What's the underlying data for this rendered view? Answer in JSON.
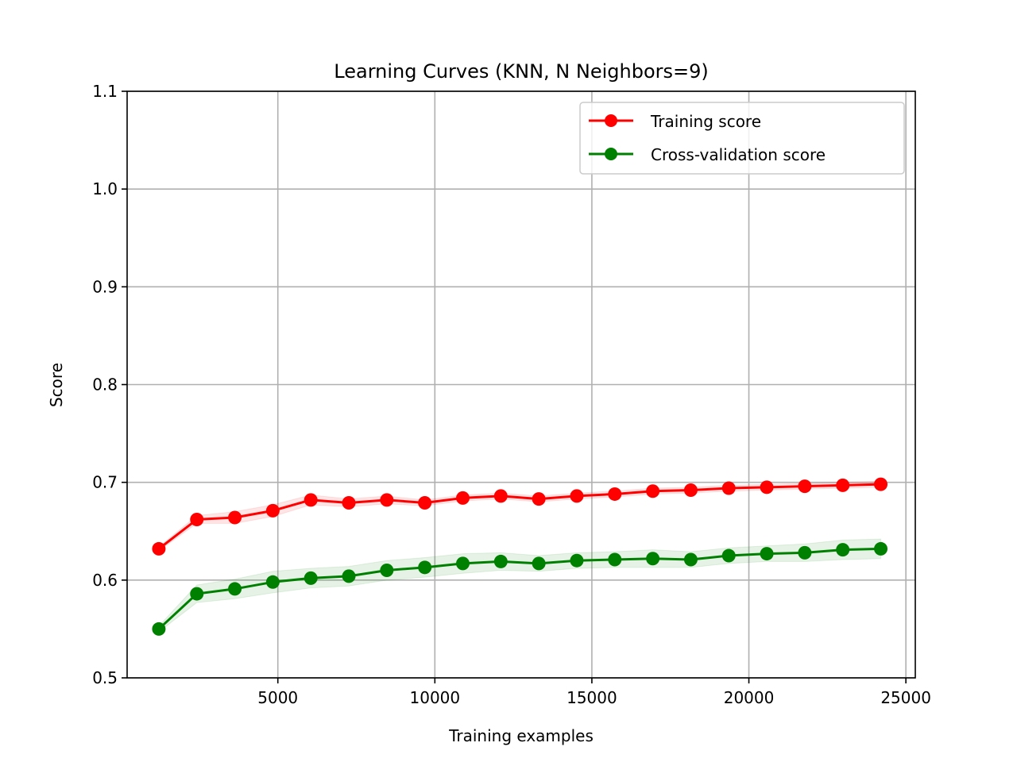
{
  "chart_data": {
    "type": "line",
    "title": "Learning Curves (KNN, N Neighbors=9)",
    "xlabel": "Training examples",
    "ylabel": "Score",
    "xlim": [
      200,
      25300
    ],
    "ylim": [
      0.5,
      1.1
    ],
    "xticks": [
      5000,
      10000,
      15000,
      20000,
      25000
    ],
    "yticks": [
      0.5,
      0.6,
      0.7,
      0.8,
      0.9,
      1.0,
      1.1
    ],
    "xtick_labels": [
      "5000",
      "10000",
      "15000",
      "20000",
      "25000"
    ],
    "ytick_labels": [
      "0.5",
      "0.6",
      "0.7",
      "0.8",
      "0.9",
      "1.0",
      "1.1"
    ],
    "grid": true,
    "legend_position": "top-right",
    "x": [
      1210,
      2420,
      3630,
      4840,
      6050,
      7260,
      8470,
      9680,
      10890,
      12100,
      13310,
      14520,
      15730,
      16940,
      18150,
      19360,
      20570,
      21780,
      22990,
      24200
    ],
    "series": [
      {
        "name": "Training score",
        "color": "#ff0000",
        "values": [
          0.632,
          0.662,
          0.664,
          0.671,
          0.682,
          0.679,
          0.682,
          0.679,
          0.684,
          0.686,
          0.683,
          0.686,
          0.688,
          0.691,
          0.692,
          0.694,
          0.695,
          0.696,
          0.697,
          0.698
        ],
        "band": [
          0.002,
          0.004,
          0.006,
          0.006,
          0.005,
          0.004,
          0.004,
          0.003,
          0.003,
          0.003,
          0.003,
          0.003,
          0.003,
          0.003,
          0.003,
          0.003,
          0.003,
          0.003,
          0.003,
          0.003
        ]
      },
      {
        "name": "Cross-validation score",
        "color": "#008000",
        "values": [
          0.55,
          0.586,
          0.591,
          0.598,
          0.602,
          0.604,
          0.61,
          0.613,
          0.617,
          0.619,
          0.617,
          0.62,
          0.621,
          0.622,
          0.621,
          0.625,
          0.627,
          0.628,
          0.631,
          0.632
        ],
        "band": [
          0.003,
          0.009,
          0.01,
          0.011,
          0.01,
          0.01,
          0.01,
          0.01,
          0.01,
          0.009,
          0.008,
          0.008,
          0.008,
          0.009,
          0.008,
          0.008,
          0.008,
          0.009,
          0.01,
          0.01
        ]
      }
    ]
  }
}
